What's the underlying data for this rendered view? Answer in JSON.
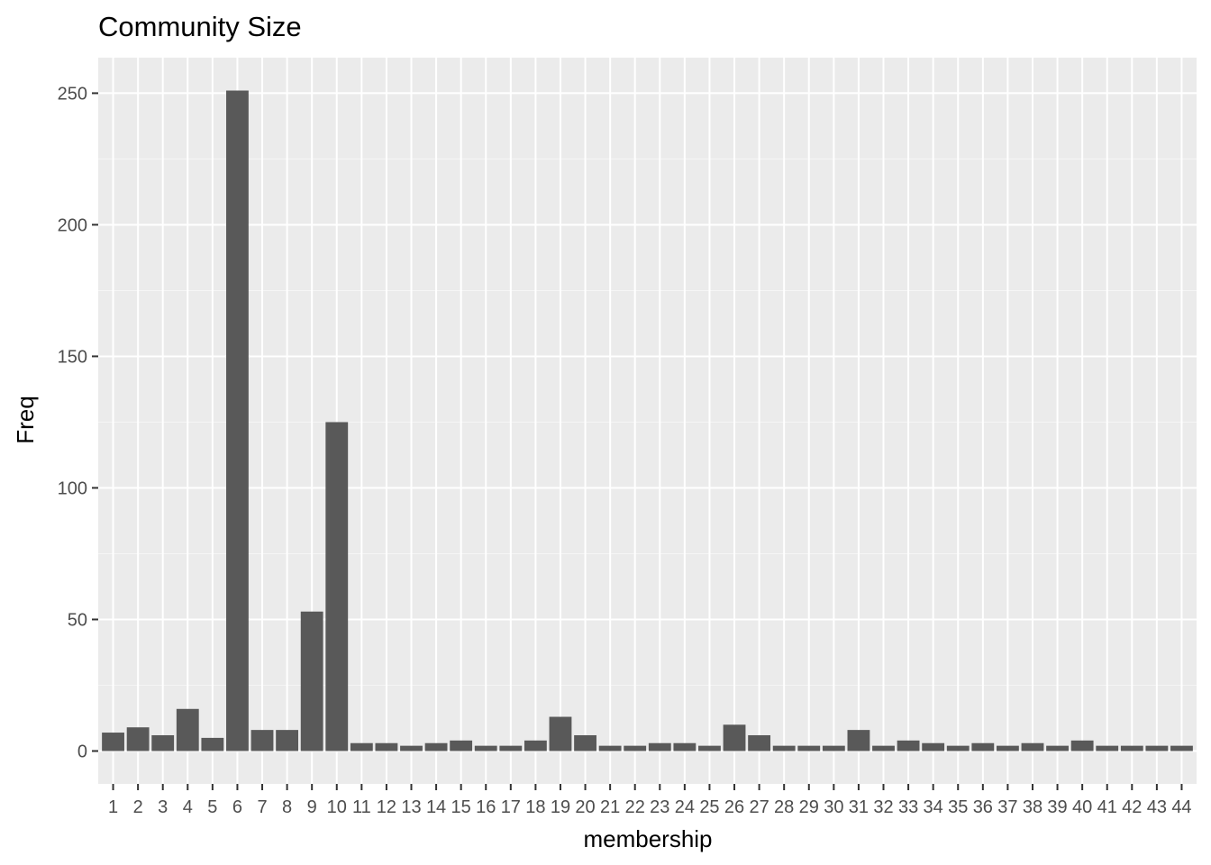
{
  "chart_data": {
    "type": "bar",
    "title": "Community Size",
    "xlabel": "membership",
    "ylabel": "Freq",
    "categories": [
      "1",
      "2",
      "3",
      "4",
      "5",
      "6",
      "7",
      "8",
      "9",
      "10",
      "11",
      "12",
      "13",
      "14",
      "15",
      "16",
      "17",
      "18",
      "19",
      "20",
      "21",
      "22",
      "23",
      "24",
      "25",
      "26",
      "27",
      "28",
      "29",
      "30",
      "31",
      "32",
      "33",
      "34",
      "35",
      "36",
      "37",
      "38",
      "39",
      "40",
      "41",
      "42",
      "43",
      "44"
    ],
    "values": [
      7,
      9,
      6,
      16,
      5,
      251,
      8,
      8,
      53,
      125,
      3,
      3,
      2,
      3,
      4,
      2,
      2,
      4,
      13,
      6,
      2,
      2,
      3,
      3,
      2,
      10,
      6,
      2,
      2,
      2,
      8,
      2,
      4,
      3,
      2,
      3,
      2,
      3,
      2,
      4,
      2,
      2,
      2,
      2
    ],
    "ylim": [
      -12.5,
      263.5
    ],
    "yticks": [
      0,
      50,
      100,
      150,
      200,
      250
    ],
    "grid": true,
    "colors": {
      "bar": "#595959",
      "panel": "#ebebeb",
      "grid_major": "#ffffff",
      "grid_minor": "#f5f5f5"
    }
  }
}
